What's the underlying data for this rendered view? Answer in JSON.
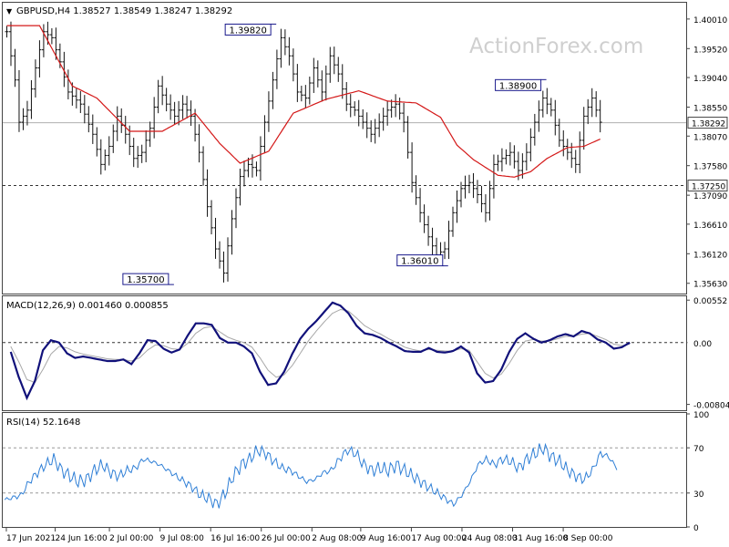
{
  "chart_data": [
    {
      "type": "ohlc",
      "header": {
        "arrow": "▼",
        "symbol_text": "GBPUSD,H4",
        "o": "1.38527",
        "h": "1.38549",
        "l": "1.38247",
        "c": "1.38292"
      },
      "watermark": "ActionForex.com",
      "ylim": [
        1.3546,
        1.4028
      ],
      "y_ticks": [
        "1.40010",
        "1.39520",
        "1.39040",
        "1.38550",
        "1.38070",
        "1.37580",
        "1.37090",
        "1.36610",
        "1.36120",
        "1.35630"
      ],
      "current_price": "1.38292",
      "support_level": "1.37250",
      "swing_labels": [
        {
          "text": "1.39820",
          "x": 64.5,
          "y": 1.3982
        },
        {
          "text": "1.35700",
          "x": 39.5,
          "y": 1.357
        },
        {
          "text": "1.36010",
          "x": 106.5,
          "y": 1.3601
        },
        {
          "text": "1.38900",
          "x": 130.5,
          "y": 1.389
        }
      ],
      "price_anchors": [
        [
          0,
          1.398
        ],
        [
          2,
          1.39
        ],
        [
          3,
          1.383
        ],
        [
          5,
          1.385
        ],
        [
          7,
          1.392
        ],
        [
          9,
          1.398
        ],
        [
          11,
          1.397
        ],
        [
          13,
          1.393
        ],
        [
          15,
          1.388
        ],
        [
          18,
          1.386
        ],
        [
          21,
          1.381
        ],
        [
          23,
          1.376
        ],
        [
          25,
          1.379
        ],
        [
          27,
          1.384
        ],
        [
          29,
          1.381
        ],
        [
          31,
          1.377
        ],
        [
          33,
          1.378
        ],
        [
          35,
          1.382
        ],
        [
          37,
          1.389
        ],
        [
          39,
          1.386
        ],
        [
          41,
          1.384
        ],
        [
          43,
          1.386
        ],
        [
          45,
          1.384
        ],
        [
          47,
          1.378
        ],
        [
          49,
          1.369
        ],
        [
          51,
          1.362
        ],
        [
          53,
          1.358
        ],
        [
          55,
          1.367
        ],
        [
          57,
          1.374
        ],
        [
          59,
          1.376
        ],
        [
          61,
          1.375
        ],
        [
          63,
          1.383
        ],
        [
          65,
          1.39
        ],
        [
          67,
          1.397
        ],
        [
          69,
          1.394
        ],
        [
          71,
          1.388
        ],
        [
          73,
          1.387
        ],
        [
          75,
          1.392
        ],
        [
          77,
          1.388
        ],
        [
          79,
          1.394
        ],
        [
          81,
          1.391
        ],
        [
          83,
          1.386
        ],
        [
          85,
          1.385
        ],
        [
          87,
          1.383
        ],
        [
          89,
          1.381
        ],
        [
          91,
          1.383
        ],
        [
          93,
          1.385
        ],
        [
          95,
          1.386
        ],
        [
          97,
          1.383
        ],
        [
          99,
          1.373
        ],
        [
          101,
          1.368
        ],
        [
          103,
          1.364
        ],
        [
          105,
          1.361
        ],
        [
          107,
          1.362
        ],
        [
          109,
          1.368
        ],
        [
          111,
          1.372
        ],
        [
          113,
          1.373
        ],
        [
          115,
          1.371
        ],
        [
          117,
          1.368
        ],
        [
          119,
          1.376
        ],
        [
          121,
          1.377
        ],
        [
          123,
          1.378
        ],
        [
          125,
          1.375
        ],
        [
          127,
          1.378
        ],
        [
          129,
          1.383
        ],
        [
          131,
          1.387
        ],
        [
          133,
          1.385
        ],
        [
          135,
          1.38
        ],
        [
          137,
          1.378
        ],
        [
          139,
          1.376
        ],
        [
          141,
          1.384
        ],
        [
          143,
          1.387
        ],
        [
          144,
          1.385
        ],
        [
          145,
          1.383
        ]
      ],
      "ma_anchors": [
        [
          0,
          1.399
        ],
        [
          8,
          1.399
        ],
        [
          16,
          1.389
        ],
        [
          22,
          1.387
        ],
        [
          30,
          1.3815
        ],
        [
          38,
          1.3815
        ],
        [
          46,
          1.3845
        ],
        [
          52,
          1.3795
        ],
        [
          57,
          1.3762
        ],
        [
          64,
          1.3782
        ],
        [
          70,
          1.3845
        ],
        [
          78,
          1.3868
        ],
        [
          86,
          1.3882
        ],
        [
          93,
          1.3865
        ],
        [
          100,
          1.3862
        ],
        [
          106,
          1.3838
        ],
        [
          110,
          1.3792
        ],
        [
          114,
          1.3768
        ],
        [
          120,
          1.3742
        ],
        [
          124,
          1.3739
        ],
        [
          128,
          1.3748
        ],
        [
          132,
          1.377
        ],
        [
          137,
          1.3788
        ],
        [
          141,
          1.379
        ],
        [
          145,
          1.3802
        ]
      ],
      "x_labels": [
        {
          "text": "17 Jun 2021",
          "bar": 0
        },
        {
          "text": "24 Jun 16:00",
          "bar": 13.5
        },
        {
          "text": "2 Jul 00:00",
          "bar": 28.5
        },
        {
          "text": "9 Jul 08:00",
          "bar": 42.5
        },
        {
          "text": "16 Jul 16:00",
          "bar": 56.5
        },
        {
          "text": "26 Jul 00:00",
          "bar": 70.5
        },
        {
          "text": "2 Aug 08:00",
          "bar": 84.5
        },
        {
          "text": "9 Aug 16:00",
          "bar": 98
        },
        {
          "text": "17 Aug 00:00",
          "bar": 112
        },
        {
          "text": "24 Aug 08:00",
          "bar": 126
        },
        {
          "text": "31 Aug 16:00",
          "bar": 140
        },
        {
          "text": "8 Sep 00:00",
          "bar": 154
        }
      ],
      "x_range": [
        -1,
        166
      ]
    },
    {
      "type": "line",
      "title": "MACD(12,26,9) 0.001460 0.000855",
      "ylim": [
        -0.0088,
        0.0059
      ],
      "y_ticks": [
        "0.00552",
        "0.00",
        "-0.00804"
      ],
      "value_badge": "0.00",
      "macd_anchors": [
        [
          0,
          -0.0012
        ],
        [
          1,
          -0.0045
        ],
        [
          2,
          -0.0072
        ],
        [
          3,
          -0.005
        ],
        [
          4,
          -0.001
        ],
        [
          5,
          0.0003
        ],
        [
          6,
          0.0
        ],
        [
          7,
          -0.0014
        ],
        [
          8,
          -0.002
        ],
        [
          9,
          -0.0018
        ],
        [
          10,
          -0.002
        ],
        [
          11,
          -0.0022
        ],
        [
          12,
          -0.0024
        ],
        [
          13,
          -0.0024
        ],
        [
          14,
          -0.0022
        ],
        [
          15,
          -0.0028
        ],
        [
          16,
          -0.0014
        ],
        [
          17,
          0.0003
        ],
        [
          18,
          0.0002
        ],
        [
          19,
          -0.0008
        ],
        [
          20,
          -0.0013
        ],
        [
          21,
          -0.0009
        ],
        [
          22,
          0.0009
        ],
        [
          23,
          0.0025
        ],
        [
          24,
          0.0025
        ],
        [
          25,
          0.0023
        ],
        [
          26,
          0.0006
        ],
        [
          27,
          0.0
        ],
        [
          28,
          0.0
        ],
        [
          29,
          -0.0005
        ],
        [
          30,
          -0.0014
        ],
        [
          31,
          -0.0038
        ],
        [
          32,
          -0.0055
        ],
        [
          33,
          -0.0053
        ],
        [
          34,
          -0.0038
        ],
        [
          35,
          -0.0015
        ],
        [
          36,
          0.0005
        ],
        [
          37,
          0.0018
        ],
        [
          38,
          0.0028
        ],
        [
          39,
          0.004
        ],
        [
          40,
          0.0052
        ],
        [
          41,
          0.0048
        ],
        [
          42,
          0.0038
        ],
        [
          43,
          0.0022
        ],
        [
          44,
          0.0012
        ],
        [
          45,
          0.001
        ],
        [
          46,
          0.0006
        ],
        [
          47,
          0.0
        ],
        [
          48,
          -0.0005
        ],
        [
          49,
          -0.0011
        ],
        [
          50,
          -0.0012
        ],
        [
          51,
          -0.0012
        ],
        [
          52,
          -0.0007
        ],
        [
          53,
          -0.0012
        ],
        [
          54,
          -0.0013
        ],
        [
          55,
          -0.0011
        ],
        [
          56,
          -0.0005
        ],
        [
          57,
          -0.0013
        ],
        [
          58,
          -0.004
        ],
        [
          59,
          -0.0052
        ],
        [
          60,
          -0.005
        ],
        [
          61,
          -0.0035
        ],
        [
          62,
          -0.0012
        ],
        [
          63,
          0.0005
        ],
        [
          64,
          0.0012
        ],
        [
          65,
          0.0005
        ],
        [
          66,
          0.0
        ],
        [
          67,
          0.0003
        ],
        [
          68,
          0.0008
        ],
        [
          69,
          0.0011
        ],
        [
          70,
          0.0008
        ],
        [
          71,
          0.0015
        ],
        [
          72,
          0.0012
        ],
        [
          73,
          0.0004
        ],
        [
          74,
          0.0
        ],
        [
          75,
          -0.0008
        ],
        [
          76,
          -0.0006
        ],
        [
          77,
          0.0
        ]
      ],
      "signal_anchors": [
        [
          0,
          -0.0005
        ],
        [
          1,
          -0.0025
        ],
        [
          2,
          -0.0048
        ],
        [
          3,
          -0.0052
        ],
        [
          4,
          -0.0035
        ],
        [
          5,
          -0.0015
        ],
        [
          6,
          -0.0005
        ],
        [
          7,
          -0.0007
        ],
        [
          8,
          -0.0012
        ],
        [
          9,
          -0.0015
        ],
        [
          10,
          -0.0017
        ],
        [
          11,
          -0.0019
        ],
        [
          12,
          -0.0021
        ],
        [
          13,
          -0.0022
        ],
        [
          14,
          -0.0022
        ],
        [
          15,
          -0.0024
        ],
        [
          16,
          -0.002
        ],
        [
          17,
          -0.001
        ],
        [
          18,
          -0.0003
        ],
        [
          19,
          -0.0004
        ],
        [
          20,
          -0.0008
        ],
        [
          21,
          -0.0009
        ],
        [
          22,
          -0.0001
        ],
        [
          23,
          0.0012
        ],
        [
          24,
          0.0019
        ],
        [
          25,
          0.0021
        ],
        [
          26,
          0.0014
        ],
        [
          27,
          0.0007
        ],
        [
          28,
          0.0003
        ],
        [
          29,
          0.0
        ],
        [
          30,
          -0.0006
        ],
        [
          31,
          -0.002
        ],
        [
          32,
          -0.0036
        ],
        [
          33,
          -0.0045
        ],
        [
          34,
          -0.0042
        ],
        [
          35,
          -0.003
        ],
        [
          36,
          -0.0014
        ],
        [
          37,
          0.0002
        ],
        [
          38,
          0.0015
        ],
        [
          39,
          0.0027
        ],
        [
          40,
          0.0038
        ],
        [
          41,
          0.0043
        ],
        [
          42,
          0.0041
        ],
        [
          43,
          0.0032
        ],
        [
          44,
          0.0022
        ],
        [
          45,
          0.0016
        ],
        [
          46,
          0.0011
        ],
        [
          47,
          0.0005
        ],
        [
          48,
          0.0
        ],
        [
          49,
          -0.0006
        ],
        [
          50,
          -0.0009
        ],
        [
          51,
          -0.0011
        ],
        [
          52,
          -0.0009
        ],
        [
          53,
          -0.001
        ],
        [
          54,
          -0.0011
        ],
        [
          55,
          -0.0011
        ],
        [
          56,
          -0.0008
        ],
        [
          57,
          -0.001
        ],
        [
          58,
          -0.0025
        ],
        [
          59,
          -0.004
        ],
        [
          60,
          -0.0046
        ],
        [
          61,
          -0.0041
        ],
        [
          62,
          -0.0027
        ],
        [
          63,
          -0.001
        ],
        [
          64,
          0.0002
        ],
        [
          65,
          0.0004
        ],
        [
          66,
          0.0002
        ],
        [
          67,
          0.0002
        ],
        [
          68,
          0.0005
        ],
        [
          69,
          0.0008
        ],
        [
          70,
          0.0008
        ],
        [
          71,
          0.0011
        ],
        [
          72,
          0.0012
        ],
        [
          73,
          0.0008
        ],
        [
          74,
          0.0004
        ],
        [
          75,
          -0.0002
        ],
        [
          76,
          -0.0004
        ],
        [
          77,
          -0.0002
        ]
      ],
      "x_range": [
        -1,
        84
      ]
    },
    {
      "type": "line",
      "title": "RSI(14) 52.1648",
      "ylim": [
        0,
        100
      ],
      "y_ticks": [
        100,
        70,
        30,
        0
      ],
      "levels": [
        70,
        30
      ],
      "rsi_anchors": [
        [
          0,
          24
        ],
        [
          4,
          26
        ],
        [
          8,
          28
        ],
        [
          12,
          40
        ],
        [
          16,
          48
        ],
        [
          20,
          55
        ],
        [
          24,
          60
        ],
        [
          28,
          50
        ],
        [
          32,
          45
        ],
        [
          36,
          40
        ],
        [
          40,
          42
        ],
        [
          44,
          50
        ],
        [
          48,
          55
        ],
        [
          52,
          48
        ],
        [
          56,
          45
        ],
        [
          60,
          50
        ],
        [
          64,
          52
        ],
        [
          68,
          60
        ],
        [
          72,
          58
        ],
        [
          76,
          55
        ],
        [
          80,
          50
        ],
        [
          84,
          45
        ],
        [
          88,
          40
        ],
        [
          92,
          35
        ],
        [
          96,
          28
        ],
        [
          100,
          25
        ],
        [
          104,
          20
        ],
        [
          108,
          30
        ],
        [
          112,
          45
        ],
        [
          116,
          55
        ],
        [
          120,
          60
        ],
        [
          124,
          68
        ],
        [
          128,
          65
        ],
        [
          132,
          58
        ],
        [
          136,
          52
        ],
        [
          140,
          50
        ],
        [
          144,
          45
        ],
        [
          148,
          40
        ],
        [
          152,
          42
        ],
        [
          156,
          48
        ],
        [
          160,
          50
        ],
        [
          164,
          60
        ],
        [
          168,
          68
        ],
        [
          172,
          65
        ],
        [
          176,
          55
        ],
        [
          180,
          50
        ],
        [
          184,
          52
        ],
        [
          188,
          50
        ],
        [
          192,
          55
        ],
        [
          196,
          50
        ],
        [
          200,
          45
        ],
        [
          204,
          40
        ],
        [
          208,
          35
        ],
        [
          212,
          30
        ],
        [
          216,
          25
        ],
        [
          220,
          20
        ],
        [
          224,
          28
        ],
        [
          228,
          40
        ],
        [
          232,
          55
        ],
        [
          236,
          60
        ],
        [
          240,
          55
        ],
        [
          244,
          60
        ],
        [
          248,
          58
        ],
        [
          252,
          52
        ],
        [
          256,
          60
        ],
        [
          260,
          65
        ],
        [
          264,
          70
        ],
        [
          268,
          62
        ],
        [
          272,
          58
        ],
        [
          276,
          50
        ],
        [
          280,
          45
        ],
        [
          284,
          42
        ],
        [
          288,
          50
        ],
        [
          292,
          65
        ],
        [
          296,
          62
        ],
        [
          300,
          52
        ]
      ],
      "x_range": [
        -1,
        334
      ]
    }
  ]
}
